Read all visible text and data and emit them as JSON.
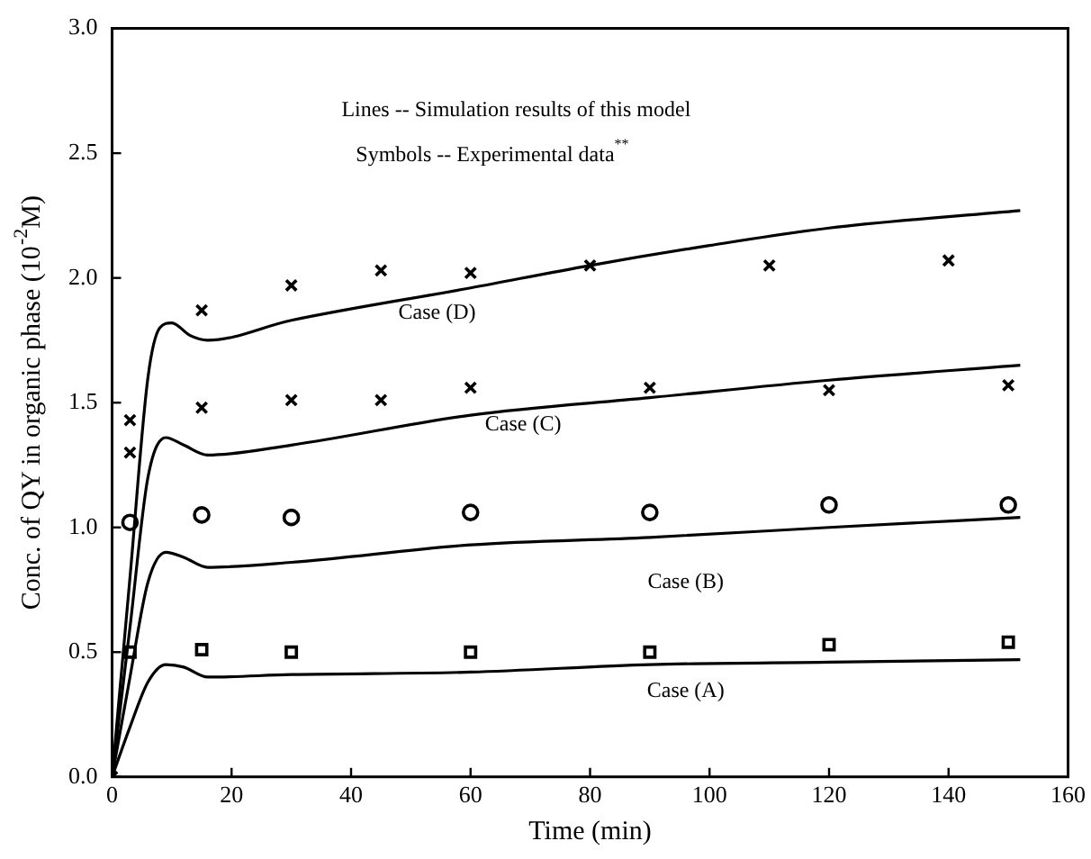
{
  "chart_data": {
    "type": "line",
    "xlabel": "Time (min)",
    "ylabel": "Conc. of QY in organic phase (10$^{-2}$M)",
    "xlim": [
      0,
      160
    ],
    "xticks": [
      0,
      20,
      40,
      60,
      80,
      100,
      120,
      140,
      160
    ],
    "ylim": [
      0,
      3
    ],
    "yticks": [
      {
        "value": 0,
        "label": "0.0"
      },
      {
        "value": 0.5,
        "label": "0.5"
      },
      {
        "value": 1,
        "label": "1.0"
      },
      {
        "value": 1.5,
        "label": "1.5"
      },
      {
        "value": 2,
        "label": "2.0"
      },
      {
        "value": 2.5,
        "label": "2.5"
      },
      {
        "value": 3,
        "label": "3.0"
      }
    ],
    "grid": false,
    "legend": false,
    "series": [
      {
        "color": "#000000",
        "x": [
          0,
          3,
          6,
          8,
          10,
          13,
          16,
          30,
          60,
          80,
          100,
          120,
          152
        ],
        "values": [
          0,
          0.8,
          1.6,
          1.8,
          1.82,
          1.77,
          1.75,
          1.83,
          1.96,
          2.05,
          2.13,
          2.2,
          2.27
        ]
      },
      {
        "color": "#000000",
        "x": [
          0,
          3,
          6,
          9,
          12,
          16,
          30,
          60,
          90,
          120,
          152
        ],
        "values": [
          0,
          0.6,
          1.2,
          1.36,
          1.33,
          1.29,
          1.33,
          1.45,
          1.52,
          1.59,
          1.65
        ]
      },
      {
        "color": "#000000",
        "x": [
          0,
          3,
          6,
          9,
          12,
          16,
          30,
          60,
          90,
          120,
          152
        ],
        "values": [
          0,
          0.4,
          0.78,
          0.9,
          0.88,
          0.84,
          0.86,
          0.93,
          0.96,
          1.0,
          1.04
        ]
      },
      {
        "color": "#000000",
        "x": [
          0,
          3,
          6,
          9,
          12,
          16,
          30,
          60,
          90,
          120,
          152
        ],
        "values": [
          0,
          0.2,
          0.38,
          0.45,
          0.44,
          0.4,
          0.41,
          0.42,
          0.45,
          0.46,
          0.47
        ]
      },
      {
        "type": "scatter",
        "marker": "cross",
        "color": "#000000",
        "x": [
          0,
          3,
          15,
          30,
          45,
          60,
          80,
          110,
          140
        ],
        "values": [
          0,
          1.43,
          1.87,
          1.97,
          2.03,
          2.02,
          2.05,
          2.05,
          2.07
        ]
      },
      {
        "type": "scatter",
        "marker": "cross",
        "color": "#000000",
        "x": [
          3,
          15,
          30,
          45,
          60,
          90,
          120,
          150
        ],
        "values": [
          1.3,
          1.48,
          1.51,
          1.51,
          1.56,
          1.56,
          1.55,
          1.57
        ]
      },
      {
        "type": "scatter",
        "marker": "circle",
        "color": "#000000",
        "x": [
          3,
          15,
          30,
          60,
          90,
          120,
          150
        ],
        "values": [
          1.02,
          1.05,
          1.04,
          1.06,
          1.06,
          1.09,
          1.09
        ]
      },
      {
        "type": "scatter",
        "marker": "square",
        "color": "#000000",
        "x": [
          3,
          15,
          30,
          60,
          90,
          120,
          150
        ],
        "values": [
          0.5,
          0.51,
          0.5,
          0.5,
          0.5,
          0.53,
          0.54
        ]
      }
    ],
    "annotations": [
      "Lines -- Simulation results of this model",
      "Symbols -- Experimental data$^{**}$",
      "Case (D)",
      "Case (C)",
      "Case (B)",
      "Case (A)"
    ]
  }
}
